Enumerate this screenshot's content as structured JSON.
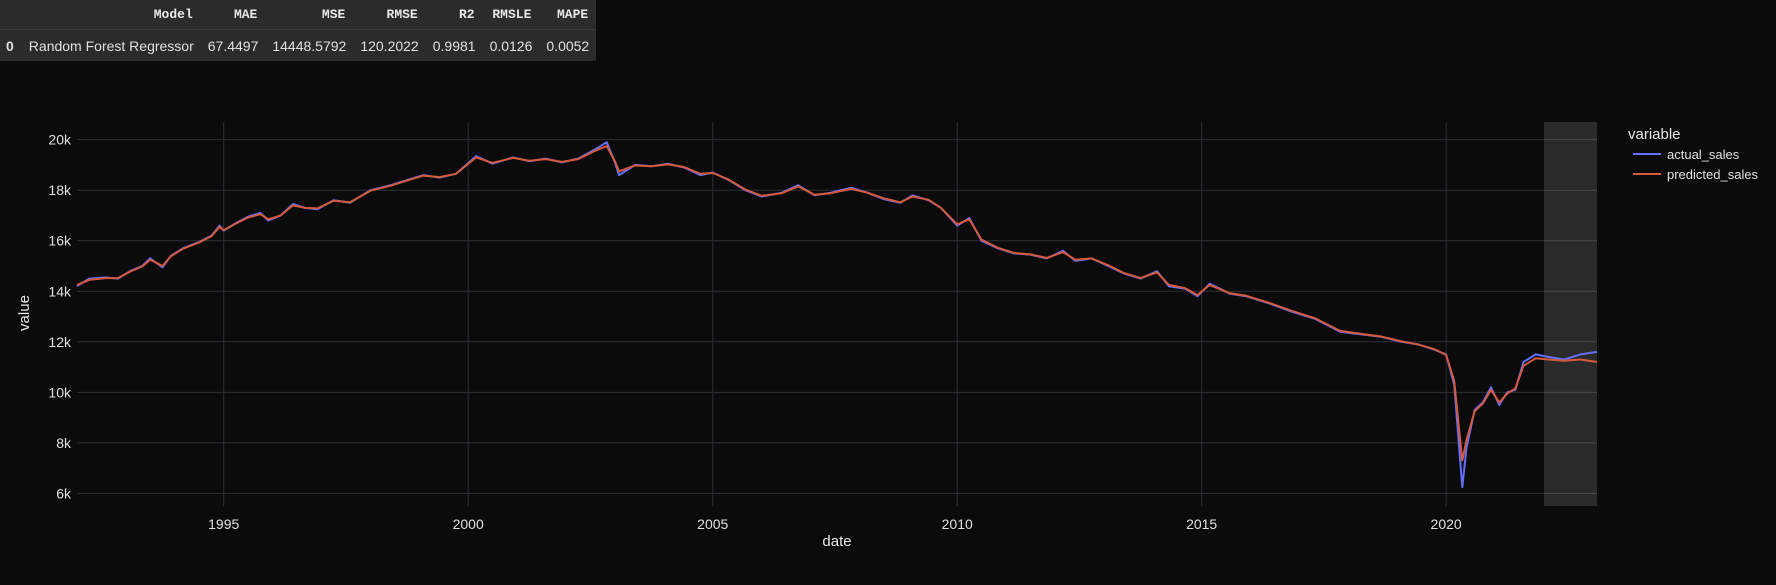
{
  "metrics_table": {
    "headers": [
      "",
      "Model",
      "MAE",
      "MSE",
      "RMSE",
      "R2",
      "RMSLE",
      "MAPE"
    ],
    "rows": [
      [
        "0",
        "Random Forest Regressor",
        "67.4497",
        "14448.5792",
        "120.2022",
        "0.9981",
        "0.0126",
        "0.0052"
      ]
    ]
  },
  "chart_data": {
    "type": "line",
    "xlabel": "date",
    "ylabel": "value",
    "x_range": [
      "1992-01-01",
      "2023-02-01"
    ],
    "y_range": [
      5500,
      20700
    ],
    "x_ticks": [
      {
        "date": "1995-01-01",
        "label": "1995"
      },
      {
        "date": "2000-01-01",
        "label": "2000"
      },
      {
        "date": "2005-01-01",
        "label": "2005"
      },
      {
        "date": "2010-01-01",
        "label": "2010"
      },
      {
        "date": "2015-01-01",
        "label": "2015"
      },
      {
        "date": "2020-01-01",
        "label": "2020"
      }
    ],
    "y_ticks": [
      {
        "value": 6000,
        "label": "6k"
      },
      {
        "value": 8000,
        "label": "8k"
      },
      {
        "value": 10000,
        "label": "10k"
      },
      {
        "value": 12000,
        "label": "12k"
      },
      {
        "value": 14000,
        "label": "14k"
      },
      {
        "value": 16000,
        "label": "16k"
      },
      {
        "value": 18000,
        "label": "18k"
      },
      {
        "value": 20000,
        "label": "20k"
      }
    ],
    "highlight_range": [
      "2022-01-01",
      "2023-02-01"
    ],
    "grid": true,
    "legend": {
      "title": "variable",
      "placement": "top-right"
    },
    "series": [
      {
        "name": "actual_sales",
        "color": "#636efa",
        "points": [
          [
            "1992-01-01",
            14200
          ],
          [
            "1992-04-01",
            14500
          ],
          [
            "1992-08-01",
            14550
          ],
          [
            "1992-11-01",
            14500
          ],
          [
            "1993-02-01",
            14800
          ],
          [
            "1993-05-01",
            15000
          ],
          [
            "1993-07-01",
            15300
          ],
          [
            "1993-10-01",
            14950
          ],
          [
            "1993-12-01",
            15400
          ],
          [
            "1994-03-01",
            15700
          ],
          [
            "1994-07-01",
            15950
          ],
          [
            "1994-10-01",
            16200
          ],
          [
            "1994-12-01",
            16600
          ],
          [
            "1995-01-01",
            16400
          ],
          [
            "1995-04-01",
            16700
          ],
          [
            "1995-07-01",
            16950
          ],
          [
            "1995-10-01",
            17100
          ],
          [
            "1995-12-01",
            16800
          ],
          [
            "1996-03-01",
            17000
          ],
          [
            "1996-06-01",
            17450
          ],
          [
            "1996-09-01",
            17300
          ],
          [
            "1996-12-01",
            17250
          ],
          [
            "1997-04-01",
            17600
          ],
          [
            "1997-08-01",
            17500
          ],
          [
            "1998-01-01",
            18000
          ],
          [
            "1998-06-01",
            18200
          ],
          [
            "1998-10-01",
            18400
          ],
          [
            "1999-02-01",
            18600
          ],
          [
            "1999-06-01",
            18500
          ],
          [
            "1999-10-01",
            18650
          ],
          [
            "2000-03-01",
            19350
          ],
          [
            "2000-07-01",
            19050
          ],
          [
            "2000-12-01",
            19300
          ],
          [
            "2001-04-01",
            19150
          ],
          [
            "2001-08-01",
            19250
          ],
          [
            "2001-12-01",
            19100
          ],
          [
            "2002-04-01",
            19250
          ],
          [
            "2002-08-01",
            19600
          ],
          [
            "2002-11-01",
            19900
          ],
          [
            "2003-01-01",
            19100
          ],
          [
            "2003-02-01",
            18600
          ],
          [
            "2003-06-01",
            19000
          ],
          [
            "2003-10-01",
            18950
          ],
          [
            "2004-02-01",
            19050
          ],
          [
            "2004-06-01",
            18900
          ],
          [
            "2004-10-01",
            18600
          ],
          [
            "2005-01-01",
            18700
          ],
          [
            "2005-05-01",
            18400
          ],
          [
            "2005-09-01",
            18000
          ],
          [
            "2006-01-01",
            17750
          ],
          [
            "2006-06-01",
            17900
          ],
          [
            "2006-10-01",
            18200
          ],
          [
            "2007-02-01",
            17800
          ],
          [
            "2007-06-01",
            17900
          ],
          [
            "2007-11-01",
            18100
          ],
          [
            "2008-03-01",
            17900
          ],
          [
            "2008-07-01",
            17650
          ],
          [
            "2008-11-01",
            17500
          ],
          [
            "2009-02-01",
            17800
          ],
          [
            "2009-06-01",
            17600
          ],
          [
            "2009-09-01",
            17300
          ],
          [
            "2010-01-01",
            16600
          ],
          [
            "2010-04-01",
            16900
          ],
          [
            "2010-07-01",
            16000
          ],
          [
            "2010-11-01",
            15700
          ],
          [
            "2011-03-01",
            15500
          ],
          [
            "2011-07-01",
            15450
          ],
          [
            "2011-11-01",
            15300
          ],
          [
            "2012-03-01",
            15600
          ],
          [
            "2012-06-01",
            15200
          ],
          [
            "2012-10-01",
            15300
          ],
          [
            "2013-02-01",
            15000
          ],
          [
            "2013-06-01",
            14700
          ],
          [
            "2013-10-01",
            14500
          ],
          [
            "2014-02-01",
            14800
          ],
          [
            "2014-05-01",
            14200
          ],
          [
            "2014-09-01",
            14100
          ],
          [
            "2014-12-01",
            13800
          ],
          [
            "2015-03-01",
            14300
          ],
          [
            "2015-08-01",
            13900
          ],
          [
            "2015-12-01",
            13800
          ],
          [
            "2016-06-01",
            13500
          ],
          [
            "2016-11-01",
            13200
          ],
          [
            "2017-05-01",
            12900
          ],
          [
            "2017-11-01",
            12400
          ],
          [
            "2018-04-01",
            12300
          ],
          [
            "2018-09-01",
            12200
          ],
          [
            "2019-02-01",
            12000
          ],
          [
            "2019-06-01",
            11900
          ],
          [
            "2019-10-01",
            11700
          ],
          [
            "2020-01-01",
            11500
          ],
          [
            "2020-03-01",
            10300
          ],
          [
            "2020-05-01",
            6250
          ],
          [
            "2020-06-01",
            7800
          ],
          [
            "2020-08-01",
            9300
          ],
          [
            "2020-10-01",
            9600
          ],
          [
            "2020-12-01",
            10200
          ],
          [
            "2021-02-01",
            9500
          ],
          [
            "2021-04-01",
            10000
          ],
          [
            "2021-06-01",
            10100
          ],
          [
            "2021-08-01",
            11200
          ],
          [
            "2021-11-01",
            11500
          ],
          [
            "2022-02-01",
            11400
          ],
          [
            "2022-06-01",
            11300
          ],
          [
            "2022-10-01",
            11500
          ],
          [
            "2023-02-01",
            11600
          ]
        ]
      },
      {
        "name": "predicted_sales",
        "color": "#d45a3e",
        "points": [
          [
            "1992-01-01",
            14250
          ],
          [
            "1992-04-01",
            14450
          ],
          [
            "1992-08-01",
            14520
          ],
          [
            "1992-11-01",
            14520
          ],
          [
            "1993-02-01",
            14780
          ],
          [
            "1993-05-01",
            14980
          ],
          [
            "1993-07-01",
            15250
          ],
          [
            "1993-10-01",
            15000
          ],
          [
            "1993-12-01",
            15380
          ],
          [
            "1994-03-01",
            15680
          ],
          [
            "1994-07-01",
            15930
          ],
          [
            "1994-10-01",
            16180
          ],
          [
            "1994-12-01",
            16550
          ],
          [
            "1995-01-01",
            16420
          ],
          [
            "1995-04-01",
            16680
          ],
          [
            "1995-07-01",
            16920
          ],
          [
            "1995-10-01",
            17050
          ],
          [
            "1995-12-01",
            16850
          ],
          [
            "1996-03-01",
            17000
          ],
          [
            "1996-06-01",
            17400
          ],
          [
            "1996-09-01",
            17300
          ],
          [
            "1996-12-01",
            17280
          ],
          [
            "1997-04-01",
            17580
          ],
          [
            "1997-08-01",
            17520
          ],
          [
            "1998-01-01",
            17980
          ],
          [
            "1998-06-01",
            18180
          ],
          [
            "1998-10-01",
            18380
          ],
          [
            "1999-02-01",
            18580
          ],
          [
            "1999-06-01",
            18520
          ],
          [
            "1999-10-01",
            18650
          ],
          [
            "2000-03-01",
            19300
          ],
          [
            "2000-07-01",
            19080
          ],
          [
            "2000-12-01",
            19280
          ],
          [
            "2001-04-01",
            19170
          ],
          [
            "2001-08-01",
            19230
          ],
          [
            "2001-12-01",
            19120
          ],
          [
            "2002-04-01",
            19230
          ],
          [
            "2002-08-01",
            19550
          ],
          [
            "2002-11-01",
            19750
          ],
          [
            "2003-01-01",
            19150
          ],
          [
            "2003-02-01",
            18750
          ],
          [
            "2003-06-01",
            18980
          ],
          [
            "2003-10-01",
            18950
          ],
          [
            "2004-02-01",
            19020
          ],
          [
            "2004-06-01",
            18920
          ],
          [
            "2004-10-01",
            18650
          ],
          [
            "2005-01-01",
            18680
          ],
          [
            "2005-05-01",
            18420
          ],
          [
            "2005-09-01",
            18030
          ],
          [
            "2006-01-01",
            17780
          ],
          [
            "2006-06-01",
            17880
          ],
          [
            "2006-10-01",
            18150
          ],
          [
            "2007-02-01",
            17820
          ],
          [
            "2007-06-01",
            17880
          ],
          [
            "2007-11-01",
            18050
          ],
          [
            "2008-03-01",
            17900
          ],
          [
            "2008-07-01",
            17680
          ],
          [
            "2008-11-01",
            17520
          ],
          [
            "2009-02-01",
            17750
          ],
          [
            "2009-06-01",
            17620
          ],
          [
            "2009-09-01",
            17300
          ],
          [
            "2010-01-01",
            16650
          ],
          [
            "2010-04-01",
            16850
          ],
          [
            "2010-07-01",
            16050
          ],
          [
            "2010-11-01",
            15720
          ],
          [
            "2011-03-01",
            15520
          ],
          [
            "2011-07-01",
            15460
          ],
          [
            "2011-11-01",
            15320
          ],
          [
            "2012-03-01",
            15550
          ],
          [
            "2012-06-01",
            15250
          ],
          [
            "2012-10-01",
            15300
          ],
          [
            "2013-02-01",
            15030
          ],
          [
            "2013-06-01",
            14720
          ],
          [
            "2013-10-01",
            14520
          ],
          [
            "2014-02-01",
            14750
          ],
          [
            "2014-05-01",
            14250
          ],
          [
            "2014-09-01",
            14120
          ],
          [
            "2014-12-01",
            13850
          ],
          [
            "2015-03-01",
            14250
          ],
          [
            "2015-08-01",
            13920
          ],
          [
            "2015-12-01",
            13820
          ],
          [
            "2016-06-01",
            13520
          ],
          [
            "2016-11-01",
            13230
          ],
          [
            "2017-05-01",
            12920
          ],
          [
            "2017-11-01",
            12430
          ],
          [
            "2018-04-01",
            12320
          ],
          [
            "2018-09-01",
            12210
          ],
          [
            "2019-02-01",
            12020
          ],
          [
            "2019-06-01",
            11900
          ],
          [
            "2019-10-01",
            11720
          ],
          [
            "2020-01-01",
            11480
          ],
          [
            "2020-03-01",
            10450
          ],
          [
            "2020-05-01",
            7300
          ],
          [
            "2020-06-01",
            8100
          ],
          [
            "2020-08-01",
            9250
          ],
          [
            "2020-10-01",
            9550
          ],
          [
            "2020-12-01",
            10100
          ],
          [
            "2021-02-01",
            9600
          ],
          [
            "2021-04-01",
            9950
          ],
          [
            "2021-06-01",
            10150
          ],
          [
            "2021-08-01",
            11050
          ],
          [
            "2021-11-01",
            11350
          ],
          [
            "2022-02-01",
            11300
          ],
          [
            "2022-06-01",
            11250
          ],
          [
            "2022-10-01",
            11300
          ],
          [
            "2023-02-01",
            11200
          ]
        ]
      }
    ]
  }
}
